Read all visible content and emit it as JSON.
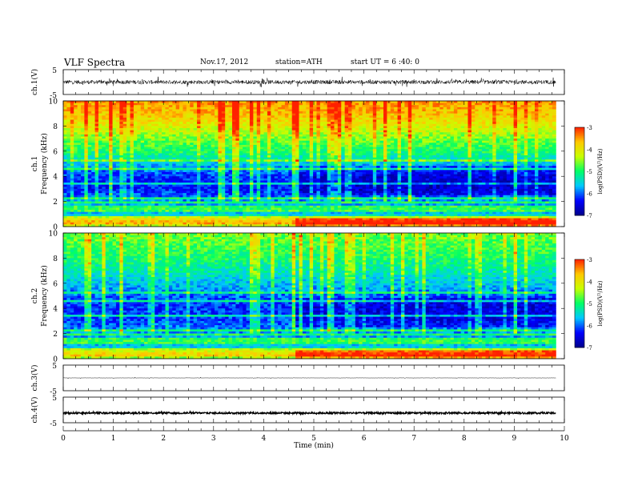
{
  "header": {
    "title": "VLF  Spectra",
    "date": "Nov.17, 2012",
    "station": "station=ATH",
    "start_ut": "start  UT =   6 :40: 0"
  },
  "chart_data": [
    {
      "type": "line",
      "panel": "ch1-waveform",
      "ylabel": "ch.1(V)",
      "ylim": [
        -5,
        5
      ],
      "y_ticks": [
        "5",
        "-5"
      ],
      "xlim": [
        0,
        9.83
      ],
      "x_unit": "min",
      "baseline": 0,
      "noise_amplitude": 0.8,
      "spike_amplitude": 1.6
    },
    {
      "type": "heatmap",
      "panel": "ch1-spectrogram",
      "ylabel_top": "ch.1",
      "ylabel_bottom": "Frequency  (kHz)",
      "ylim": [
        0,
        10
      ],
      "y_ticks": [
        "0",
        "2",
        "4",
        "6",
        "8",
        "10"
      ],
      "xlim": [
        0,
        9.83
      ],
      "colorbar": {
        "label": "log(PSD)(V²/Hz)",
        "range": [
          -7,
          -3
        ],
        "ticks": [
          "-3",
          "-4",
          "-5",
          "-6",
          "-7"
        ],
        "colors": [
          "#00008b",
          "#0000ff",
          "#00c8ff",
          "#00ff66",
          "#c8ff00",
          "#ffc800",
          "#ff2000"
        ]
      },
      "level_profile": [
        {
          "f": 0.0,
          "level": -4.2
        },
        {
          "f": 0.5,
          "level": -4.6
        },
        {
          "f": 1.0,
          "level": -5.6
        },
        {
          "f": 2.0,
          "level": -5.8
        },
        {
          "f": 3.0,
          "level": -6.3
        },
        {
          "f": 4.0,
          "level": -6.2
        },
        {
          "f": 5.0,
          "level": -5.6
        },
        {
          "f": 6.0,
          "level": -5.0
        },
        {
          "f": 7.0,
          "level": -4.6
        },
        {
          "f": 8.0,
          "level": -4.1
        },
        {
          "f": 9.0,
          "level": -3.7
        },
        {
          "f": 10.0,
          "level": -3.5
        }
      ],
      "change_time_min": 4.7
    },
    {
      "type": "heatmap",
      "panel": "ch2-spectrogram",
      "ylabel_top": "ch.2",
      "ylabel_bottom": "Frequency  (kHz)",
      "ylim": [
        0,
        10
      ],
      "y_ticks": [
        "0",
        "2",
        "4",
        "6",
        "8",
        "10"
      ],
      "xlim": [
        0,
        9.83
      ],
      "colorbar": {
        "label": "log(PSD)(V²/Hz)",
        "range": [
          -7,
          -3
        ],
        "ticks": [
          "-3",
          "-4",
          "-5",
          "-6",
          "-7"
        ],
        "colors": [
          "#00008b",
          "#0000ff",
          "#00c8ff",
          "#00ff66",
          "#c8ff00",
          "#ffc800",
          "#ff2000"
        ]
      },
      "level_profile": [
        {
          "f": 0.0,
          "level": -4.4
        },
        {
          "f": 0.5,
          "level": -4.8
        },
        {
          "f": 1.0,
          "level": -5.6
        },
        {
          "f": 2.0,
          "level": -5.8
        },
        {
          "f": 3.0,
          "level": -6.1
        },
        {
          "f": 4.0,
          "level": -6.2
        },
        {
          "f": 5.0,
          "level": -6.0
        },
        {
          "f": 6.0,
          "level": -5.6
        },
        {
          "f": 7.0,
          "level": -5.3
        },
        {
          "f": 8.0,
          "level": -5.0
        },
        {
          "f": 9.0,
          "level": -4.8
        },
        {
          "f": 10.0,
          "level": -4.6
        }
      ],
      "change_time_min": 4.7
    },
    {
      "type": "line",
      "panel": "ch3-waveform",
      "ylabel": "ch.3(V)",
      "ylim": [
        -5,
        5
      ],
      "y_ticks": [
        "5",
        "-5"
      ],
      "xlim": [
        0,
        9.83
      ],
      "baseline": 0,
      "noise_amplitude": 0.05,
      "spike_amplitude": 0.2
    },
    {
      "type": "line",
      "panel": "ch4-waveform",
      "ylabel": "ch.4(V)",
      "ylim": [
        -5,
        5
      ],
      "y_ticks": [
        "5",
        "-5"
      ],
      "xlim": [
        0,
        9.83
      ],
      "baseline": -1.2,
      "noise_amplitude": 0.35,
      "spike_amplitude": 0.4
    }
  ],
  "x_axis": {
    "label": "Time  (min)",
    "range": [
      0,
      10
    ],
    "ticks": [
      "0",
      "1",
      "2",
      "3",
      "4",
      "5",
      "6",
      "7",
      "8",
      "9",
      "10"
    ]
  }
}
